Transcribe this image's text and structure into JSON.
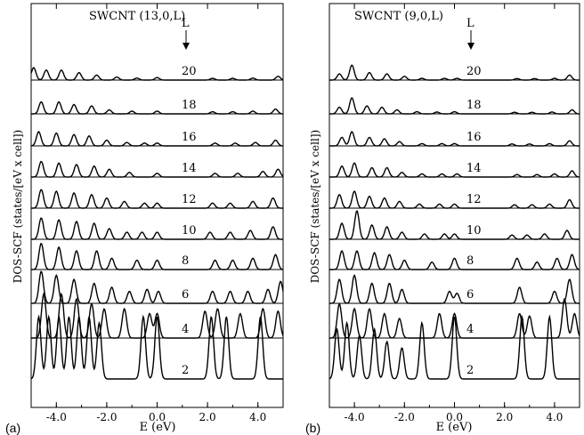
{
  "ylabel": "DOS-SCF (states/[eV x cell])",
  "xlabel": "E (eV)",
  "panels": [
    {
      "letter": "(a)",
      "title": "SWCNT (13,0,L)",
      "column_header": "L",
      "x_ticks": [
        "-4.0",
        "-2.0",
        "0.0",
        "2.0",
        "4.0"
      ]
    },
    {
      "letter": "(b)",
      "title": "SWCNT (9,0,L)",
      "column_header": "L",
      "x_ticks": [
        "-4.0",
        "-2.0",
        "0.0",
        "2.0",
        "4.0"
      ]
    }
  ],
  "chart_data": [
    {
      "type": "line",
      "title": "SWCNT (13,0,L)",
      "xlabel": "E (eV)",
      "ylabel": "DOS-SCF (states/[eV x cell])",
      "xlim": [
        -5.0,
        5.0
      ],
      "x_tick_values": [
        -4.0,
        -2.0,
        0.0,
        2.0,
        4.0
      ],
      "stacked_offset_curves": true,
      "series": [
        {
          "name": "2",
          "peaks": [
            [
              -4.7,
              1.0
            ],
            [
              -4.3,
              1.0
            ],
            [
              -3.9,
              1.0
            ],
            [
              -3.5,
              1.0
            ],
            [
              -3.1,
              1.0
            ],
            [
              -2.7,
              1.0
            ],
            [
              -2.3,
              0.9
            ],
            [
              -0.55,
              1.0
            ],
            [
              0.0,
              1.0
            ],
            [
              2.15,
              1.0
            ],
            [
              2.75,
              1.0
            ],
            [
              4.1,
              1.0
            ]
          ]
        },
        {
          "name": "4",
          "peaks": [
            [
              -4.5,
              0.9
            ],
            [
              -3.8,
              0.9
            ],
            [
              -3.2,
              0.8
            ],
            [
              -2.6,
              0.7
            ],
            [
              -2.1,
              0.6
            ],
            [
              -1.3,
              0.6
            ],
            [
              -0.3,
              0.5
            ],
            [
              0.0,
              0.5
            ],
            [
              1.9,
              0.55
            ],
            [
              2.4,
              0.6
            ],
            [
              3.3,
              0.5
            ],
            [
              4.2,
              0.6
            ],
            [
              4.8,
              0.55
            ]
          ]
        },
        {
          "name": "6",
          "peaks": [
            [
              -4.6,
              0.8
            ],
            [
              -4.0,
              0.7
            ],
            [
              -3.3,
              0.6
            ],
            [
              -2.5,
              0.5
            ],
            [
              -1.8,
              0.4
            ],
            [
              -1.1,
              0.3
            ],
            [
              -0.4,
              0.35
            ],
            [
              0.05,
              0.3
            ],
            [
              2.2,
              0.3
            ],
            [
              2.9,
              0.3
            ],
            [
              3.6,
              0.3
            ],
            [
              4.4,
              0.35
            ],
            [
              4.9,
              0.55
            ]
          ]
        },
        {
          "name": "8",
          "peaks": [
            [
              -4.6,
              0.7
            ],
            [
              -3.9,
              0.6
            ],
            [
              -3.2,
              0.5
            ],
            [
              -2.4,
              0.5
            ],
            [
              -1.8,
              0.3
            ],
            [
              -0.8,
              0.25
            ],
            [
              0.0,
              0.25
            ],
            [
              2.3,
              0.25
            ],
            [
              3.0,
              0.25
            ],
            [
              3.8,
              0.3
            ],
            [
              4.7,
              0.4
            ]
          ]
        },
        {
          "name": "10",
          "peaks": [
            [
              -4.6,
              0.6
            ],
            [
              -3.9,
              0.55
            ],
            [
              -3.2,
              0.5
            ],
            [
              -2.5,
              0.45
            ],
            [
              -1.9,
              0.3
            ],
            [
              -1.2,
              0.2
            ],
            [
              -0.6,
              0.2
            ],
            [
              0.0,
              0.2
            ],
            [
              2.1,
              0.2
            ],
            [
              2.9,
              0.2
            ],
            [
              3.7,
              0.25
            ],
            [
              4.6,
              0.35
            ]
          ]
        },
        {
          "name": "12",
          "peaks": [
            [
              -4.6,
              0.55
            ],
            [
              -4.0,
              0.5
            ],
            [
              -3.3,
              0.45
            ],
            [
              -2.6,
              0.4
            ],
            [
              -2.0,
              0.3
            ],
            [
              -1.3,
              0.2
            ],
            [
              -0.5,
              0.15
            ],
            [
              0.0,
              0.15
            ],
            [
              2.2,
              0.15
            ],
            [
              2.9,
              0.15
            ],
            [
              3.8,
              0.2
            ],
            [
              4.6,
              0.3
            ]
          ]
        },
        {
          "name": "14",
          "peaks": [
            [
              -4.6,
              0.5
            ],
            [
              -3.9,
              0.45
            ],
            [
              -3.2,
              0.4
            ],
            [
              -2.5,
              0.35
            ],
            [
              -1.9,
              0.25
            ],
            [
              -1.1,
              0.15
            ],
            [
              0.0,
              0.12
            ],
            [
              2.3,
              0.12
            ],
            [
              3.2,
              0.12
            ],
            [
              4.2,
              0.18
            ],
            [
              4.8,
              0.25
            ]
          ]
        },
        {
          "name": "16",
          "peaks": [
            [
              -4.7,
              0.5
            ],
            [
              -4.0,
              0.45
            ],
            [
              -3.3,
              0.4
            ],
            [
              -2.7,
              0.35
            ],
            [
              -2.0,
              0.2
            ],
            [
              -1.2,
              0.12
            ],
            [
              -0.5,
              0.1
            ],
            [
              0.0,
              0.1
            ],
            [
              2.3,
              0.1
            ],
            [
              3.1,
              0.1
            ],
            [
              3.9,
              0.12
            ],
            [
              4.7,
              0.2
            ]
          ]
        },
        {
          "name": "18",
          "peaks": [
            [
              -4.6,
              0.45
            ],
            [
              -3.9,
              0.45
            ],
            [
              -3.3,
              0.35
            ],
            [
              -2.6,
              0.3
            ],
            [
              -1.9,
              0.15
            ],
            [
              -1.0,
              0.1
            ],
            [
              0.0,
              0.1
            ],
            [
              2.2,
              0.08
            ],
            [
              3.0,
              0.08
            ],
            [
              3.8,
              0.1
            ],
            [
              4.7,
              0.18
            ]
          ]
        },
        {
          "name": "20",
          "peaks": [
            [
              -4.9,
              0.5
            ],
            [
              -4.4,
              0.4
            ],
            [
              -3.8,
              0.4
            ],
            [
              -3.1,
              0.3
            ],
            [
              -2.4,
              0.2
            ],
            [
              -1.6,
              0.12
            ],
            [
              -0.8,
              0.08
            ],
            [
              0.0,
              0.1
            ],
            [
              2.2,
              0.07
            ],
            [
              3.0,
              0.07
            ],
            [
              3.8,
              0.08
            ],
            [
              4.8,
              0.15
            ]
          ]
        }
      ]
    },
    {
      "type": "line",
      "title": "SWCNT (9,0,L)",
      "xlabel": "E (eV)",
      "ylabel": "DOS-SCF (states/[eV x cell])",
      "xlim": [
        -5.0,
        5.0
      ],
      "x_tick_values": [
        -4.0,
        -2.0,
        0.0,
        2.0,
        4.0
      ],
      "stacked_offset_curves": true,
      "series": [
        {
          "name": "2",
          "peaks": [
            [
              -4.7,
              0.8
            ],
            [
              -4.3,
              0.9
            ],
            [
              -3.8,
              0.7
            ],
            [
              -3.2,
              0.8
            ],
            [
              -2.7,
              0.6
            ],
            [
              -2.1,
              0.5
            ],
            [
              -1.3,
              0.9
            ],
            [
              0.0,
              1.0
            ],
            [
              2.7,
              1.0
            ],
            [
              3.8,
              1.0
            ]
          ]
        },
        {
          "name": "4",
          "peaks": [
            [
              -4.6,
              0.7
            ],
            [
              -4.0,
              0.6
            ],
            [
              -3.4,
              0.6
            ],
            [
              -2.8,
              0.5
            ],
            [
              -2.2,
              0.4
            ],
            [
              -0.6,
              0.5
            ],
            [
              0.0,
              0.5
            ],
            [
              2.6,
              0.5
            ],
            [
              3.0,
              0.45
            ],
            [
              4.4,
              0.8
            ],
            [
              4.8,
              0.5
            ]
          ]
        },
        {
          "name": "6",
          "peaks": [
            [
              -4.6,
              0.6
            ],
            [
              -4.0,
              0.7
            ],
            [
              -3.3,
              0.5
            ],
            [
              -2.6,
              0.5
            ],
            [
              -2.1,
              0.35
            ],
            [
              -0.2,
              0.3
            ],
            [
              0.1,
              0.25
            ],
            [
              2.6,
              0.4
            ],
            [
              4.0,
              0.3
            ],
            [
              4.6,
              0.6
            ]
          ]
        },
        {
          "name": "8",
          "peaks": [
            [
              -4.5,
              0.5
            ],
            [
              -3.9,
              0.5
            ],
            [
              -3.2,
              0.45
            ],
            [
              -2.6,
              0.4
            ],
            [
              -2.0,
              0.25
            ],
            [
              -0.9,
              0.2
            ],
            [
              0.0,
              0.3
            ],
            [
              2.5,
              0.3
            ],
            [
              3.3,
              0.2
            ],
            [
              4.1,
              0.3
            ],
            [
              4.7,
              0.4
            ]
          ]
        },
        {
          "name": "10",
          "peaks": [
            [
              -4.5,
              0.45
            ],
            [
              -3.9,
              0.8
            ],
            [
              -3.3,
              0.4
            ],
            [
              -2.7,
              0.35
            ],
            [
              -2.1,
              0.2
            ],
            [
              -1.2,
              0.15
            ],
            [
              -0.4,
              0.15
            ],
            [
              0.0,
              0.15
            ],
            [
              2.3,
              0.12
            ],
            [
              2.9,
              0.12
            ],
            [
              3.6,
              0.15
            ],
            [
              4.5,
              0.25
            ]
          ]
        },
        {
          "name": "12",
          "peaks": [
            [
              -4.6,
              0.4
            ],
            [
              -4.0,
              0.5
            ],
            [
              -3.4,
              0.35
            ],
            [
              -2.8,
              0.3
            ],
            [
              -2.2,
              0.2
            ],
            [
              -1.4,
              0.12
            ],
            [
              -0.6,
              0.12
            ],
            [
              0.0,
              0.12
            ],
            [
              2.4,
              0.1
            ],
            [
              3.1,
              0.1
            ],
            [
              3.8,
              0.12
            ],
            [
              4.6,
              0.25
            ]
          ]
        },
        {
          "name": "14",
          "peaks": [
            [
              -4.5,
              0.35
            ],
            [
              -4.0,
              0.45
            ],
            [
              -3.3,
              0.3
            ],
            [
              -2.7,
              0.3
            ],
            [
              -2.1,
              0.15
            ],
            [
              -1.3,
              0.1
            ],
            [
              -0.5,
              0.1
            ],
            [
              0.1,
              0.1
            ],
            [
              2.5,
              0.08
            ],
            [
              3.3,
              0.08
            ],
            [
              4.0,
              0.1
            ],
            [
              4.7,
              0.2
            ]
          ]
        },
        {
          "name": "16",
          "peaks": [
            [
              -4.5,
              0.3
            ],
            [
              -4.1,
              0.5
            ],
            [
              -3.4,
              0.3
            ],
            [
              -2.8,
              0.25
            ],
            [
              -2.2,
              0.15
            ],
            [
              -1.3,
              0.08
            ],
            [
              -0.5,
              0.08
            ],
            [
              0.0,
              0.08
            ],
            [
              2.3,
              0.07
            ],
            [
              3.0,
              0.07
            ],
            [
              3.8,
              0.08
            ],
            [
              4.6,
              0.18
            ]
          ]
        },
        {
          "name": "18",
          "peaks": [
            [
              -4.6,
              0.25
            ],
            [
              -4.1,
              0.6
            ],
            [
              -3.5,
              0.3
            ],
            [
              -2.9,
              0.25
            ],
            [
              -2.3,
              0.15
            ],
            [
              -1.5,
              0.08
            ],
            [
              -0.7,
              0.07
            ],
            [
              0.0,
              0.08
            ],
            [
              2.4,
              0.06
            ],
            [
              3.1,
              0.06
            ],
            [
              3.9,
              0.07
            ],
            [
              4.7,
              0.15
            ]
          ]
        },
        {
          "name": "20",
          "peaks": [
            [
              -4.6,
              0.25
            ],
            [
              -4.1,
              0.6
            ],
            [
              -3.4,
              0.3
            ],
            [
              -2.7,
              0.25
            ],
            [
              -2.0,
              0.15
            ],
            [
              -1.3,
              0.07
            ],
            [
              -0.4,
              0.07
            ],
            [
              0.1,
              0.07
            ],
            [
              2.5,
              0.06
            ],
            [
              3.2,
              0.06
            ],
            [
              4.0,
              0.07
            ],
            [
              4.6,
              0.2
            ]
          ]
        }
      ]
    }
  ]
}
